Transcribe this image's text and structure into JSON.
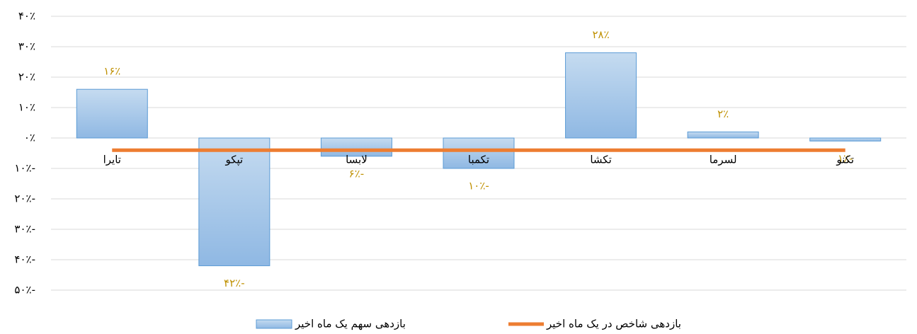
{
  "chart_data": {
    "type": "bar",
    "categories": [
      "تایرا",
      "تپکو",
      "لابسا",
      "تکمبا",
      "تکشا",
      "لسرما",
      "تکنو"
    ],
    "series": [
      {
        "name": "بازدهی سهم یک ماه اخیر",
        "type": "bar",
        "color": "#9dc3e6",
        "values": [
          16,
          -42,
          -6,
          -10,
          28,
          2,
          -1
        ],
        "value_labels": [
          "۱۶٪",
          "۴۲٪-",
          "۶٪-",
          "۱۰٪-",
          "۲۸٪",
          "۲٪",
          "۱٪-"
        ]
      },
      {
        "name": "بازدهی شاخص در یک ماه اخیر",
        "type": "line",
        "color": "#ed7d31",
        "values": [
          -4,
          -4,
          -4,
          -4,
          -4,
          -4,
          -4
        ]
      }
    ],
    "ylim": [
      -50,
      40
    ],
    "yticks": [
      {
        "value": -50,
        "label": "۵۰٪-"
      },
      {
        "value": -40,
        "label": "۴۰٪-"
      },
      {
        "value": -30,
        "label": "۳۰٪-"
      },
      {
        "value": -20,
        "label": "۲۰٪-"
      },
      {
        "value": -10,
        "label": "۱۰٪-"
      },
      {
        "value": 0,
        "label": "۰٪"
      },
      {
        "value": 10,
        "label": "۱۰٪"
      },
      {
        "value": 20,
        "label": "۲۰٪"
      },
      {
        "value": 30,
        "label": "۳۰٪"
      },
      {
        "value": 40,
        "label": "۴۰٪"
      }
    ],
    "grid": true,
    "legend": "bottom"
  }
}
